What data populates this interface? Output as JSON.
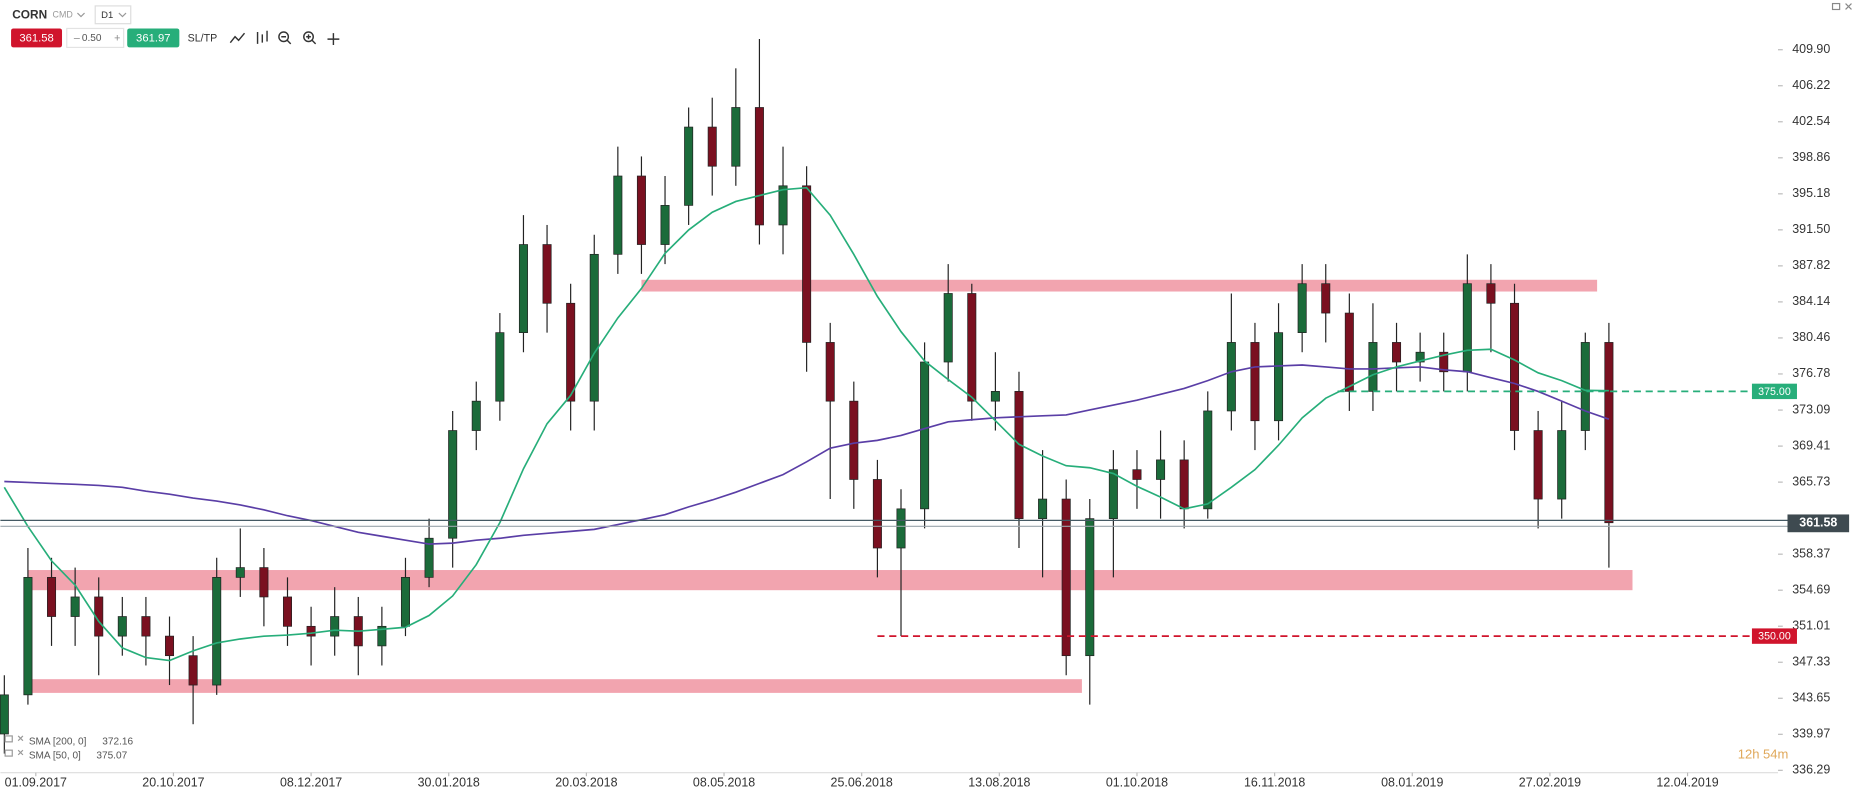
{
  "toolbar": {
    "symbol": "CORN",
    "category": "CMD",
    "interval": "D1",
    "minus": "–",
    "lot": "0.50",
    "plus": "+",
    "ask": 361.97,
    "sltp": "SL/TP"
  },
  "timer": "12h 54m",
  "chart_data": {
    "type": "candlestick",
    "xlim": [
      0,
      452
    ],
    "ylim": [
      336.05,
      414.98
    ],
    "grid": false,
    "up_color": "#1b6b3a",
    "down_color": "#7a1020",
    "xticks": [
      {
        "value": 9,
        "label": "01.09.2017"
      },
      {
        "value": 44,
        "label": "20.10.2017"
      },
      {
        "value": 79,
        "label": "08.12.2017"
      },
      {
        "value": 114,
        "label": "30.01.2018"
      },
      {
        "value": 149,
        "label": "20.03.2018"
      },
      {
        "value": 184,
        "label": "08.05.2018"
      },
      {
        "value": 219,
        "label": "25.06.2018"
      },
      {
        "value": 254,
        "label": "13.08.2018"
      },
      {
        "value": 289,
        "label": "01.10.2018"
      },
      {
        "value": 324,
        "label": "16.11.2018"
      },
      {
        "value": 359,
        "label": "08.01.2019"
      },
      {
        "value": 394,
        "label": "27.02.2019"
      },
      {
        "value": 429,
        "label": "12.04.2019"
      }
    ],
    "yticks": [
      {
        "value": 409.9,
        "label": "409.90"
      },
      406.22,
      402.54,
      398.86,
      395.18,
      {
        "value": 391.5,
        "label": "391.50"
      },
      387.82,
      384.14,
      380.46,
      376.78,
      373.09,
      369.41,
      365.73,
      358.37,
      354.69,
      351.01,
      347.33,
      343.65,
      339.97,
      336.29
    ],
    "x": [
      1,
      7,
      13,
      19,
      25,
      31,
      37,
      43,
      49,
      55,
      61,
      67,
      73,
      79,
      85,
      91,
      97,
      103,
      109,
      115,
      121,
      127,
      133,
      139,
      145,
      151,
      157,
      163,
      169,
      175,
      181,
      187,
      193,
      199,
      205,
      211,
      217,
      223,
      229,
      235,
      241,
      247,
      253,
      259,
      265,
      271,
      277,
      283,
      289,
      295,
      301,
      307,
      313,
      319,
      325,
      331,
      337,
      343,
      349,
      355,
      361,
      367,
      373,
      379,
      385,
      391,
      397,
      403,
      409
    ],
    "open": [
      340,
      344,
      356,
      352,
      354,
      350,
      352,
      350,
      348,
      345,
      356,
      357,
      354,
      351,
      350,
      352,
      349,
      351,
      356,
      360,
      371,
      374,
      381,
      390,
      384,
      374,
      389,
      397,
      390,
      394,
      402,
      398,
      404,
      392,
      396,
      380,
      374,
      366,
      359,
      363,
      378,
      385,
      374,
      375,
      362,
      364,
      348,
      362,
      367,
      366,
      368,
      363,
      373,
      380,
      372,
      381,
      386,
      383,
      375,
      380,
      378,
      379,
      377,
      386,
      384,
      371,
      364,
      371,
      380
    ],
    "high": [
      346,
      359,
      358,
      357,
      356,
      354,
      354,
      352,
      350,
      358,
      361,
      359,
      356,
      353,
      355,
      354,
      353,
      358,
      362,
      373,
      376,
      383,
      393,
      392,
      386,
      391,
      400,
      399,
      397,
      404,
      405,
      408,
      411,
      400,
      398,
      382,
      376,
      368,
      365,
      380,
      388,
      386,
      379,
      377,
      369,
      366,
      364,
      369,
      369,
      371,
      370,
      375,
      385,
      382,
      384,
      388,
      388,
      385,
      384,
      382,
      381,
      381,
      389,
      388,
      386,
      373,
      374,
      381,
      382
    ],
    "low": [
      338,
      343,
      349,
      349,
      346,
      348,
      347,
      345,
      341,
      344,
      354,
      351,
      349,
      347,
      348,
      346,
      347,
      350,
      355,
      357,
      369,
      372,
      379,
      381,
      371,
      371,
      387,
      387,
      388,
      392,
      395,
      396,
      390,
      389,
      377,
      364,
      363,
      356,
      350,
      361,
      376,
      372,
      371,
      359,
      356,
      346,
      343,
      356,
      363,
      362,
      361,
      362,
      371,
      369,
      370,
      379,
      380,
      373,
      373,
      375,
      376,
      375,
      375,
      379,
      369,
      361,
      362,
      369,
      357
    ],
    "close": [
      344,
      356,
      352,
      354,
      350,
      352,
      350,
      348,
      345,
      356,
      357,
      354,
      351,
      350,
      352,
      349,
      351,
      356,
      360,
      371,
      374,
      381,
      390,
      384,
      374,
      389,
      397,
      390,
      394,
      402,
      398,
      404,
      392,
      396,
      380,
      374,
      366,
      359,
      363,
      378,
      385,
      374,
      375,
      362,
      364,
      348,
      362,
      367,
      366,
      368,
      363,
      373,
      380,
      372,
      381,
      386,
      383,
      375,
      380,
      378,
      379,
      377,
      386,
      384,
      371,
      364,
      371,
      380,
      361.58
    ],
    "overlays": [
      {
        "name": "SMA [200, 0]",
        "color": "#5a3ea6",
        "values": [
          365.8,
          365.7,
          365.6,
          365.5,
          365.4,
          365.2,
          364.8,
          364.5,
          364.1,
          363.8,
          363.4,
          362.9,
          362.3,
          361.8,
          361.2,
          360.6,
          360.2,
          359.8,
          359.4,
          359.5,
          359.8,
          360.0,
          360.3,
          360.5,
          360.7,
          360.9,
          361.4,
          361.9,
          362.4,
          363.2,
          363.9,
          364.7,
          365.6,
          366.5,
          367.8,
          369.2,
          369.7,
          370.0,
          370.5,
          371.2,
          371.9,
          372.1,
          372.3,
          372.4,
          372.5,
          372.6,
          373.1,
          373.6,
          374.1,
          374.7,
          375.3,
          376.1,
          377.0,
          377.5,
          377.6,
          377.7,
          377.5,
          377.3,
          377.3,
          377.4,
          377.5,
          377.2,
          377.0,
          376.4,
          375.8,
          375.0,
          374.0,
          373.0,
          372.16
        ]
      },
      {
        "name": "SMA [50, 0]",
        "color": "#27ae7a",
        "values": [
          365.2,
          361.2,
          357.7,
          355.2,
          351.5,
          348.8,
          347.8,
          347.5,
          348.5,
          349.3,
          349.7,
          350.0,
          350.1,
          350.3,
          350.6,
          350.5,
          350.7,
          350.9,
          352.1,
          354.1,
          357.3,
          361.6,
          367.1,
          371.7,
          374.6,
          378.9,
          382.5,
          385.5,
          389.1,
          391.5,
          393.3,
          394.4,
          395.0,
          395.6,
          395.8,
          393.0,
          389.0,
          384.7,
          381.1,
          378.1,
          376.2,
          374.4,
          372.0,
          369.6,
          368.4,
          367.4,
          367.2,
          366.6,
          365.3,
          364.2,
          363.0,
          363.5,
          365.2,
          367.0,
          369.5,
          372.3,
          374.3,
          375.5,
          376.7,
          377.5,
          378.1,
          378.7,
          379.2,
          379.3,
          378.2,
          376.9,
          376.1,
          375.1,
          375.07
        ]
      }
    ],
    "zones": [
      {
        "from": 163,
        "to": 406,
        "low": 385.2,
        "high": 386.4,
        "color": "#f19aa6"
      },
      {
        "from": 7,
        "to": 415,
        "low": 354.69,
        "high": 356.75,
        "color": "#f19aa6"
      },
      {
        "from": 7,
        "to": 275,
        "low": 344.2,
        "high": 345.6,
        "color": "#f19aa6"
      }
    ],
    "levels": [
      {
        "value": 375,
        "label": "375.00",
        "from": 340,
        "color": "#27ae7a"
      },
      {
        "value": 350,
        "label": "350.00",
        "from": 223,
        "color": "#d0142c"
      }
    ]
  }
}
